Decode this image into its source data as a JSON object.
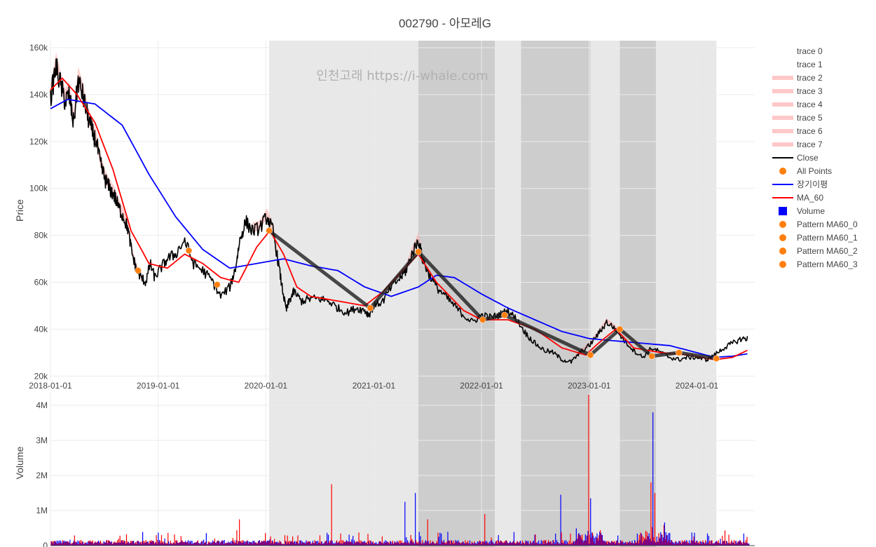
{
  "chart_data": {
    "type": "line",
    "title": "002790 - 아모레G",
    "watermark": "인천고래 https://i-whale.com",
    "price_panel": {
      "ylabel": "Price",
      "ylim": [
        18000,
        163000
      ],
      "yticks": [
        20000,
        40000,
        60000,
        80000,
        100000,
        120000,
        140000,
        160000
      ],
      "ytick_labels": [
        "20k",
        "40k",
        "60k",
        "80k",
        "100k",
        "120k",
        "140k",
        "160k"
      ]
    },
    "volume_panel": {
      "ylabel": "Volume",
      "ylim": [
        0,
        4200000
      ],
      "yticks": [
        0,
        1000000,
        2000000,
        3000000,
        4000000
      ],
      "ytick_labels": [
        "0",
        "1M",
        "2M",
        "3M",
        "4M"
      ]
    },
    "xlim": [
      "2018-01-01",
      "2024-07-15"
    ],
    "xticks": [
      "2018-01-01",
      "2019-01-01",
      "2020-01-01",
      "2021-01-01",
      "2022-01-01",
      "2023-01-01",
      "2024-01-01"
    ],
    "xtick_labels": [
      "2018-01-01",
      "2019-01-01",
      "2020-01-01",
      "2021-01-01",
      "2022-01-01",
      "2023-01-01",
      "2024-01-01"
    ],
    "shaded_regions": [
      {
        "start": "2020-01-12",
        "end": "2024-03-07",
        "shade": "light"
      },
      {
        "start": "2021-06-01",
        "end": "2022-02-15",
        "shade": "dark"
      },
      {
        "start": "2022-05-15",
        "end": "2023-01-05",
        "shade": "dark"
      },
      {
        "start": "2023-04-15",
        "end": "2023-08-15",
        "shade": "dark"
      }
    ],
    "series": [
      {
        "name": "Close",
        "color": "#000000",
        "x": [
          "2018-01-01",
          "2018-01-20",
          "2018-02-05",
          "2018-02-20",
          "2018-03-05",
          "2018-03-20",
          "2018-04-05",
          "2018-04-20",
          "2018-05-05",
          "2018-05-20",
          "2018-06-05",
          "2018-06-20",
          "2018-07-05",
          "2018-07-20",
          "2018-08-05",
          "2018-08-20",
          "2018-09-05",
          "2018-09-20",
          "2018-10-05",
          "2018-10-20",
          "2018-11-05",
          "2018-11-20",
          "2018-12-05",
          "2018-12-20",
          "2019-01-10",
          "2019-02-01",
          "2019-03-01",
          "2019-04-01",
          "2019-05-01",
          "2019-06-01",
          "2019-07-01",
          "2019-08-01",
          "2019-09-01",
          "2019-09-20",
          "2019-10-05",
          "2019-10-25",
          "2019-11-15",
          "2019-12-10",
          "2020-01-05",
          "2020-01-25",
          "2020-02-10",
          "2020-02-25",
          "2020-03-10",
          "2020-03-20",
          "2020-04-05",
          "2020-05-01",
          "2020-06-01",
          "2020-07-01",
          "2020-08-01",
          "2020-09-01",
          "2020-10-01",
          "2020-11-01",
          "2020-12-01",
          "2020-12-15",
          "2021-01-01",
          "2021-02-01",
          "2021-03-01",
          "2021-04-01",
          "2021-04-20",
          "2021-05-10",
          "2021-06-01",
          "2021-06-15",
          "2021-07-01",
          "2021-08-01",
          "2021-09-01",
          "2021-10-01",
          "2021-11-01",
          "2021-12-01",
          "2022-01-01",
          "2022-02-01",
          "2022-03-01",
          "2022-04-01",
          "2022-05-01",
          "2022-06-01",
          "2022-07-01",
          "2022-08-01",
          "2022-09-01",
          "2022-10-01",
          "2022-11-01",
          "2022-12-01",
          "2023-01-01",
          "2023-02-01",
          "2023-03-01",
          "2023-04-01",
          "2023-05-01",
          "2023-06-01",
          "2023-07-01",
          "2023-08-01",
          "2023-09-01",
          "2023-10-01",
          "2023-11-01",
          "2023-12-01",
          "2024-01-01",
          "2024-02-01",
          "2024-03-01",
          "2024-04-01",
          "2024-05-01",
          "2024-06-01",
          "2024-06-20"
        ],
        "y": [
          138000,
          152000,
          144000,
          137000,
          140000,
          128000,
          146000,
          140000,
          132000,
          125000,
          120000,
          110000,
          104000,
          100000,
          97000,
          92000,
          88000,
          83000,
          72000,
          65000,
          62000,
          60000,
          68000,
          62000,
          66000,
          70000,
          72000,
          78000,
          68000,
          65000,
          61000,
          54000,
          58000,
          66000,
          78000,
          86000,
          82000,
          83000,
          88000,
          82000,
          70000,
          58000,
          48000,
          52000,
          56000,
          52000,
          53000,
          53000,
          52000,
          49000,
          47000,
          49000,
          48000,
          46000,
          50000,
          52000,
          58000,
          62000,
          65000,
          72000,
          78000,
          70000,
          65000,
          58000,
          54000,
          50000,
          46000,
          43000,
          46000,
          45000,
          46000,
          48000,
          44000,
          38000,
          34000,
          31000,
          30000,
          27000,
          26000,
          30000,
          33000,
          38000,
          43000,
          40000,
          35000,
          31000,
          28000,
          32000,
          30000,
          28000,
          27000,
          28000,
          28000,
          27000,
          29000,
          32000,
          34000,
          36000,
          36000
        ]
      },
      {
        "name": "장기이평",
        "color": "#0000ff",
        "x": [
          "2018-01-01",
          "2018-03-01",
          "2018-06-01",
          "2018-09-01",
          "2018-12-01",
          "2019-03-01",
          "2019-06-01",
          "2019-09-01",
          "2019-12-01",
          "2020-03-01",
          "2020-06-01",
          "2020-09-01",
          "2020-12-01",
          "2021-03-01",
          "2021-06-01",
          "2021-08-01",
          "2021-10-01",
          "2022-01-01",
          "2022-04-01",
          "2022-07-01",
          "2022-10-01",
          "2023-01-01",
          "2023-04-01",
          "2023-07-01",
          "2023-10-01",
          "2024-01-01",
          "2024-03-01",
          "2024-05-01",
          "2024-06-20"
        ],
        "y": [
          134000,
          138000,
          136000,
          127000,
          106000,
          88000,
          74000,
          66000,
          68000,
          70000,
          67000,
          65000,
          58000,
          54000,
          58000,
          63000,
          62000,
          55000,
          49000,
          44000,
          39000,
          36000,
          35000,
          34000,
          33000,
          30000,
          28000,
          28500,
          29500
        ]
      },
      {
        "name": "MA_60",
        "color": "#ff0000",
        "x": [
          "2018-01-01",
          "2018-02-10",
          "2018-04-01",
          "2018-06-01",
          "2018-08-01",
          "2018-10-01",
          "2018-12-01",
          "2019-02-01",
          "2019-04-01",
          "2019-06-01",
          "2019-08-01",
          "2019-10-01",
          "2019-12-01",
          "2020-01-15",
          "2020-03-01",
          "2020-04-15",
          "2020-06-01",
          "2020-09-01",
          "2020-12-01",
          "2021-02-01",
          "2021-04-01",
          "2021-06-01",
          "2021-08-01",
          "2021-11-01",
          "2022-01-01",
          "2022-04-01",
          "2022-07-01",
          "2022-10-01",
          "2022-12-20",
          "2023-02-01",
          "2023-04-01",
          "2023-06-01",
          "2023-09-01",
          "2023-12-01",
          "2024-03-01",
          "2024-05-01",
          "2024-06-20"
        ],
        "y": [
          142000,
          147000,
          140000,
          128000,
          108000,
          82000,
          68000,
          66000,
          72000,
          68000,
          62000,
          60000,
          75000,
          82000,
          72000,
          58000,
          54000,
          52000,
          50000,
          56000,
          64000,
          72000,
          60000,
          48000,
          44000,
          44000,
          40000,
          32000,
          29000,
          34000,
          40000,
          32000,
          30000,
          29000,
          27000,
          28000,
          31000
        ]
      }
    ],
    "pattern_points": {
      "name": "Pattern MA60",
      "x": [
        "2018-10-25",
        "2019-04-15",
        "2019-07-20",
        "2020-01-12",
        "2020-12-20",
        "2021-06-01",
        "2022-01-05",
        "2022-03-20",
        "2023-01-05",
        "2023-04-15",
        "2023-08-01",
        "2023-11-01",
        "2024-03-07"
      ],
      "y": [
        65000,
        73500,
        59000,
        82000,
        49000,
        73000,
        44000,
        46000,
        29000,
        40000,
        28500,
        30000,
        27500
      ]
    },
    "volume": {
      "name": "Volume",
      "colors": [
        "#ff0000",
        "#0000ff"
      ]
    }
  },
  "legend": {
    "items": [
      {
        "label": "trace 0",
        "kind": "none",
        "color": "#ffffff"
      },
      {
        "label": "trace 1",
        "kind": "none",
        "color": "#ffffff"
      },
      {
        "label": "trace 2",
        "kind": "band",
        "color": "#ffc8c8"
      },
      {
        "label": "trace 3",
        "kind": "band",
        "color": "#ffc8c8"
      },
      {
        "label": "trace 4",
        "kind": "band",
        "color": "#ffc8c8"
      },
      {
        "label": "trace 5",
        "kind": "band",
        "color": "#ffc8c8"
      },
      {
        "label": "trace 6",
        "kind": "band",
        "color": "#ffc8c8"
      },
      {
        "label": "trace 7",
        "kind": "band",
        "color": "#ffc8c8"
      },
      {
        "label": "Close",
        "kind": "line",
        "color": "#000000"
      },
      {
        "label": "All Points",
        "kind": "dot",
        "color": "#ff7f0e"
      },
      {
        "label": "장기이평",
        "kind": "line",
        "color": "#0000ff"
      },
      {
        "label": "MA_60",
        "kind": "line",
        "color": "#ff0000"
      },
      {
        "label": "Volume",
        "kind": "square",
        "color": "#0000ff"
      },
      {
        "label": "Pattern MA60_0",
        "kind": "dot",
        "color": "#ff7f0e"
      },
      {
        "label": "Pattern MA60_1",
        "kind": "dot",
        "color": "#ff7f0e"
      },
      {
        "label": "Pattern MA60_2",
        "kind": "dot",
        "color": "#ff7f0e"
      },
      {
        "label": "Pattern MA60_3",
        "kind": "dot",
        "color": "#ff7f0e"
      }
    ]
  }
}
